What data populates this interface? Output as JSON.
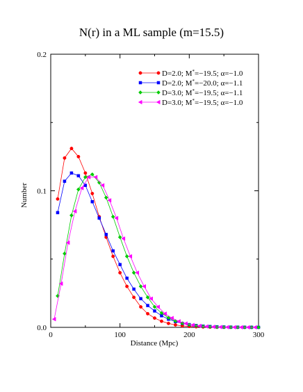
{
  "chart_data": {
    "type": "line",
    "title": "N(r) in a ML sample (m=15.5)",
    "xlabel": "Distance (Mpc)",
    "ylabel": "Number",
    "xlim": [
      0,
      300
    ],
    "ylim": [
      0,
      0.2
    ],
    "xticks": [
      0,
      100,
      200,
      300
    ],
    "xtick_labels": [
      "0",
      "100",
      "200",
      "300"
    ],
    "yticks": [
      0,
      0.1,
      0.2
    ],
    "ytick_labels": [
      "0.0",
      "0.1",
      "0.2"
    ],
    "grid": false,
    "legend_position": "top-right",
    "x": [
      10,
      20,
      30,
      40,
      50,
      60,
      70,
      80,
      90,
      100,
      110,
      120,
      130,
      140,
      150,
      160,
      170,
      180,
      190,
      200,
      210,
      220,
      230,
      240,
      250,
      260,
      270,
      280,
      290,
      300
    ],
    "series": [
      {
        "name": "D=2.0; M*=-19.5; α=-1.0",
        "legend_main": "D=2.0; M",
        "legend_rest": "=−19.5; α=−1.0",
        "color": "#ff0000",
        "marker": "circle",
        "values": [
          0.094,
          0.124,
          0.131,
          0.125,
          0.113,
          0.098,
          0.081,
          0.066,
          0.052,
          0.04,
          0.03,
          0.022,
          0.015,
          0.01,
          0.0068,
          0.0045,
          0.0029,
          0.0018,
          0.0011,
          0.0007,
          0.00045,
          0.00028,
          0.00017,
          0.0001,
          6e-05,
          4e-05,
          2e-05,
          1e-05,
          1e-05,
          0.0
        ]
      },
      {
        "name": "D=2.0; M*=-20.0; α=-1.1",
        "legend_main": "D=2.0; M",
        "legend_rest": "=−20.0; α=−1.1",
        "color": "#0000ff",
        "marker": "square",
        "values": [
          0.084,
          0.107,
          0.113,
          0.111,
          0.104,
          0.092,
          0.08,
          0.068,
          0.056,
          0.046,
          0.036,
          0.028,
          0.021,
          0.016,
          0.012,
          0.0085,
          0.006,
          0.0042,
          0.0029,
          0.002,
          0.0013,
          0.0009,
          0.0006,
          0.0004,
          0.00026,
          0.00017,
          0.00011,
          7e-05,
          4e-05,
          3e-05
        ]
      },
      {
        "name": "D=3.0; M*=-19.5; α=-1.1",
        "legend_main": "D=3.0; M",
        "legend_rest": "=−19.5; α=−1.1",
        "color": "#00cc00",
        "marker": "diamond",
        "values": [
          0.023,
          0.054,
          0.082,
          0.101,
          0.11,
          0.112,
          0.106,
          0.095,
          0.081,
          0.066,
          0.052,
          0.04,
          0.03,
          0.022,
          0.015,
          0.0105,
          0.007,
          0.0046,
          0.003,
          0.0019,
          0.0012,
          0.00075,
          0.00045,
          0.00027,
          0.00016,
          0.0001,
          6e-05,
          3e-05,
          2e-05,
          1e-05
        ]
      },
      {
        "name": "D=3.0; M*=-19.5; α=-1.0",
        "legend_main": "D=3.0; M",
        "legend_rest": "=−19.5; α=−1.0",
        "color": "#ff00ff",
        "marker": "triangle-left",
        "x": [
          5,
          15,
          25,
          35,
          45,
          55,
          65,
          75,
          85,
          95,
          105,
          115,
          125,
          135,
          145,
          155,
          165,
          175,
          185,
          195,
          205,
          215,
          225,
          235,
          245,
          255,
          265,
          275,
          285,
          295
        ],
        "values": [
          0.006,
          0.032,
          0.062,
          0.085,
          0.102,
          0.11,
          0.11,
          0.104,
          0.093,
          0.08,
          0.065,
          0.052,
          0.04,
          0.03,
          0.021,
          0.015,
          0.01,
          0.0068,
          0.0044,
          0.0028,
          0.0017,
          0.0011,
          0.00065,
          0.0004,
          0.00023,
          0.00014,
          8e-05,
          5e-05,
          3e-05,
          2e-05
        ]
      }
    ]
  }
}
